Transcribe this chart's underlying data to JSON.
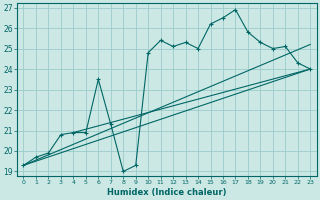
{
  "xlabel": "Humidex (Indice chaleur)",
  "bg_color": "#cce8e4",
  "grid_color": "#99cccc",
  "line_color": "#006666",
  "xlim": [
    -0.5,
    23.5
  ],
  "ylim": [
    18.8,
    27.2
  ],
  "xticks": [
    0,
    1,
    2,
    3,
    4,
    5,
    6,
    7,
    8,
    9,
    10,
    11,
    12,
    13,
    14,
    15,
    16,
    17,
    18,
    19,
    20,
    21,
    22,
    23
  ],
  "yticks": [
    19,
    20,
    21,
    22,
    23,
    24,
    25,
    26,
    27
  ],
  "series": [
    [
      0,
      19.3
    ],
    [
      1,
      19.7
    ],
    [
      2,
      19.9
    ],
    [
      3,
      20.8
    ],
    [
      4,
      20.9
    ],
    [
      5,
      20.9
    ],
    [
      6,
      23.5
    ],
    [
      7,
      21.3
    ],
    [
      8,
      19.0
    ],
    [
      9,
      19.3
    ],
    [
      10,
      24.8
    ],
    [
      11,
      25.4
    ],
    [
      12,
      25.1
    ],
    [
      13,
      25.3
    ],
    [
      14,
      25.0
    ],
    [
      15,
      26.2
    ],
    [
      16,
      26.5
    ],
    [
      17,
      26.9
    ],
    [
      18,
      25.8
    ],
    [
      19,
      25.3
    ],
    [
      20,
      25.0
    ],
    [
      21,
      25.1
    ],
    [
      22,
      24.3
    ],
    [
      23,
      24.0
    ]
  ],
  "line1": [
    [
      0,
      19.3
    ],
    [
      23,
      24.0
    ]
  ],
  "line2": [
    [
      0,
      19.3
    ],
    [
      23,
      25.2
    ]
  ],
  "line3": [
    [
      4,
      20.9
    ],
    [
      23,
      24.0
    ]
  ]
}
